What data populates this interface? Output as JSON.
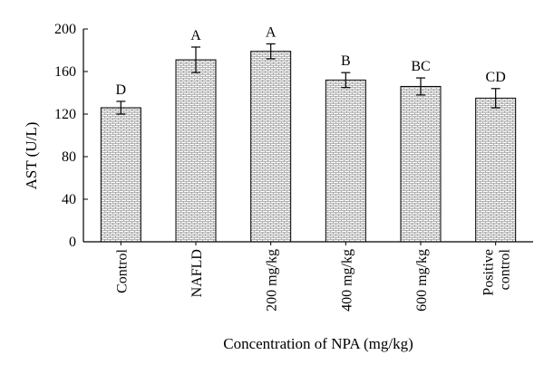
{
  "chart_data": {
    "type": "bar",
    "title": "",
    "xlabel": "Concentration of NPA (mg/kg)",
    "ylabel": "AST (U/L)",
    "ylim": [
      0,
      200
    ],
    "yticks": [
      0,
      40,
      80,
      120,
      160,
      200
    ],
    "categories": [
      [
        "Control"
      ],
      [
        "NAFLD"
      ],
      [
        "200 mg/kg"
      ],
      [
        "400 mg/kg"
      ],
      [
        "600 mg/kg"
      ],
      [
        "Positive",
        "control"
      ]
    ],
    "values": [
      126,
      171,
      179,
      152,
      146,
      135
    ],
    "errors": [
      6,
      12,
      7,
      7,
      8,
      9
    ],
    "significance_labels": [
      "D",
      "A",
      "A",
      "B",
      "BC",
      "CD"
    ],
    "bar_fill": "brick-pattern",
    "grid": false,
    "legend": "none"
  }
}
